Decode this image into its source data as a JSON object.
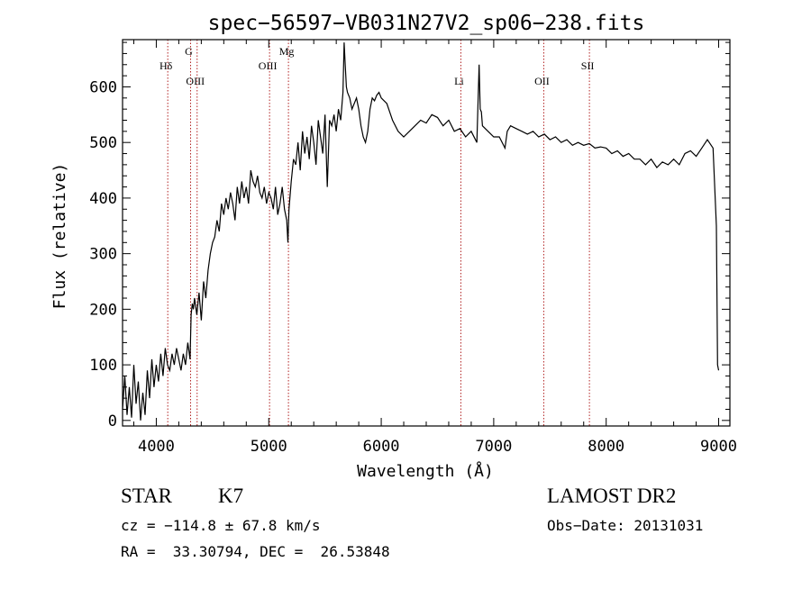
{
  "chart_data": {
    "type": "line",
    "title": "spec−56597−VB031N27V2_sp06−238.fits",
    "xlabel": "Wavelength (Å)",
    "ylabel": "Flux (relative)",
    "xlim": [
      3700,
      9100
    ],
    "ylim": [
      -10,
      685
    ],
    "xticks": [
      4000,
      5000,
      6000,
      7000,
      8000,
      9000
    ],
    "yticks": [
      0,
      100,
      200,
      300,
      400,
      500,
      600
    ],
    "grid": false,
    "series": [
      {
        "line_color": "#000000",
        "x": [
          3700,
          3720,
          3740,
          3760,
          3780,
          3800,
          3820,
          3840,
          3860,
          3880,
          3900,
          3920,
          3940,
          3960,
          3980,
          4000,
          4020,
          4040,
          4060,
          4080,
          4100,
          4120,
          4140,
          4160,
          4180,
          4200,
          4220,
          4240,
          4260,
          4280,
          4300,
          4310,
          4320,
          4330,
          4340,
          4360,
          4380,
          4400,
          4420,
          4440,
          4460,
          4480,
          4500,
          4520,
          4540,
          4560,
          4580,
          4600,
          4620,
          4640,
          4660,
          4680,
          4700,
          4720,
          4740,
          4760,
          4780,
          4800,
          4820,
          4840,
          4860,
          4880,
          4900,
          4920,
          4940,
          4960,
          4980,
          5000,
          5020,
          5040,
          5060,
          5080,
          5100,
          5120,
          5140,
          5160,
          5170,
          5180,
          5200,
          5220,
          5240,
          5260,
          5280,
          5300,
          5320,
          5340,
          5360,
          5380,
          5400,
          5420,
          5440,
          5460,
          5480,
          5500,
          5520,
          5540,
          5560,
          5580,
          5600,
          5620,
          5640,
          5660,
          5670,
          5680,
          5690,
          5700,
          5720,
          5740,
          5760,
          5780,
          5800,
          5820,
          5840,
          5860,
          5880,
          5900,
          5920,
          5940,
          5960,
          5980,
          6000,
          6050,
          6100,
          6150,
          6200,
          6250,
          6300,
          6350,
          6400,
          6450,
          6500,
          6550,
          6600,
          6650,
          6700,
          6750,
          6800,
          6850,
          6870,
          6880,
          6890,
          6900,
          6950,
          7000,
          7050,
          7100,
          7120,
          7150,
          7200,
          7250,
          7300,
          7350,
          7400,
          7450,
          7500,
          7550,
          7600,
          7650,
          7700,
          7750,
          7800,
          7850,
          7900,
          7950,
          8000,
          8050,
          8100,
          8150,
          8200,
          8250,
          8300,
          8350,
          8400,
          8450,
          8500,
          8550,
          8600,
          8650,
          8700,
          8750,
          8800,
          8850,
          8900,
          8950,
          8980,
          8990,
          9000
        ],
        "y": [
          20,
          80,
          10,
          60,
          5,
          100,
          30,
          70,
          0,
          50,
          10,
          90,
          40,
          110,
          60,
          100,
          70,
          120,
          80,
          130,
          100,
          90,
          120,
          100,
          130,
          110,
          90,
          120,
          100,
          140,
          110,
          190,
          210,
          200,
          220,
          190,
          230,
          180,
          250,
          220,
          270,
          300,
          320,
          330,
          360,
          340,
          390,
          370,
          400,
          380,
          410,
          390,
          360,
          420,
          390,
          430,
          400,
          420,
          390,
          450,
          430,
          420,
          440,
          410,
          400,
          420,
          390,
          410,
          400,
          380,
          420,
          370,
          390,
          420,
          380,
          360,
          320,
          380,
          430,
          470,
          460,
          500,
          450,
          520,
          480,
          510,
          470,
          530,
          500,
          460,
          540,
          510,
          480,
          550,
          420,
          540,
          530,
          550,
          520,
          560,
          540,
          590,
          680,
          640,
          600,
          590,
          580,
          560,
          570,
          580,
          560,
          530,
          510,
          500,
          520,
          560,
          580,
          575,
          585,
          590,
          580,
          570,
          540,
          520,
          510,
          520,
          530,
          540,
          535,
          550,
          545,
          530,
          540,
          520,
          525,
          510,
          520,
          500,
          640,
          560,
          555,
          530,
          520,
          510,
          510,
          490,
          520,
          530,
          525,
          520,
          515,
          520,
          510,
          515,
          505,
          510,
          500,
          505,
          495,
          500,
          495,
          498,
          490,
          492,
          490,
          480,
          485,
          475,
          480,
          470,
          470,
          460,
          470,
          455,
          465,
          460,
          470,
          460,
          480,
          485,
          475,
          490,
          505,
          490,
          350,
          100,
          90
        ]
      }
    ],
    "annotations": [
      {
        "label": "Hδ",
        "wavelength": 4102
      },
      {
        "label": "G",
        "wavelength": 4305
      },
      {
        "label": "OIII",
        "wavelength": 4363
      },
      {
        "label": "OIII",
        "wavelength": 5007
      },
      {
        "label": "Mg",
        "wavelength": 5175
      },
      {
        "label": "Li",
        "wavelength": 6708
      },
      {
        "label": "OII",
        "wavelength": 7445
      },
      {
        "label": "SII",
        "wavelength": 7851
      }
    ]
  },
  "info": {
    "object_class": "STAR",
    "subclass": "K7",
    "survey": "LAMOST DR2",
    "cz": "cz = −114.8 ± 67.8 km/s",
    "obs_date": "Obs−Date: 20131031",
    "coords": "RA =  33.30794, DEC =  26.53848"
  }
}
